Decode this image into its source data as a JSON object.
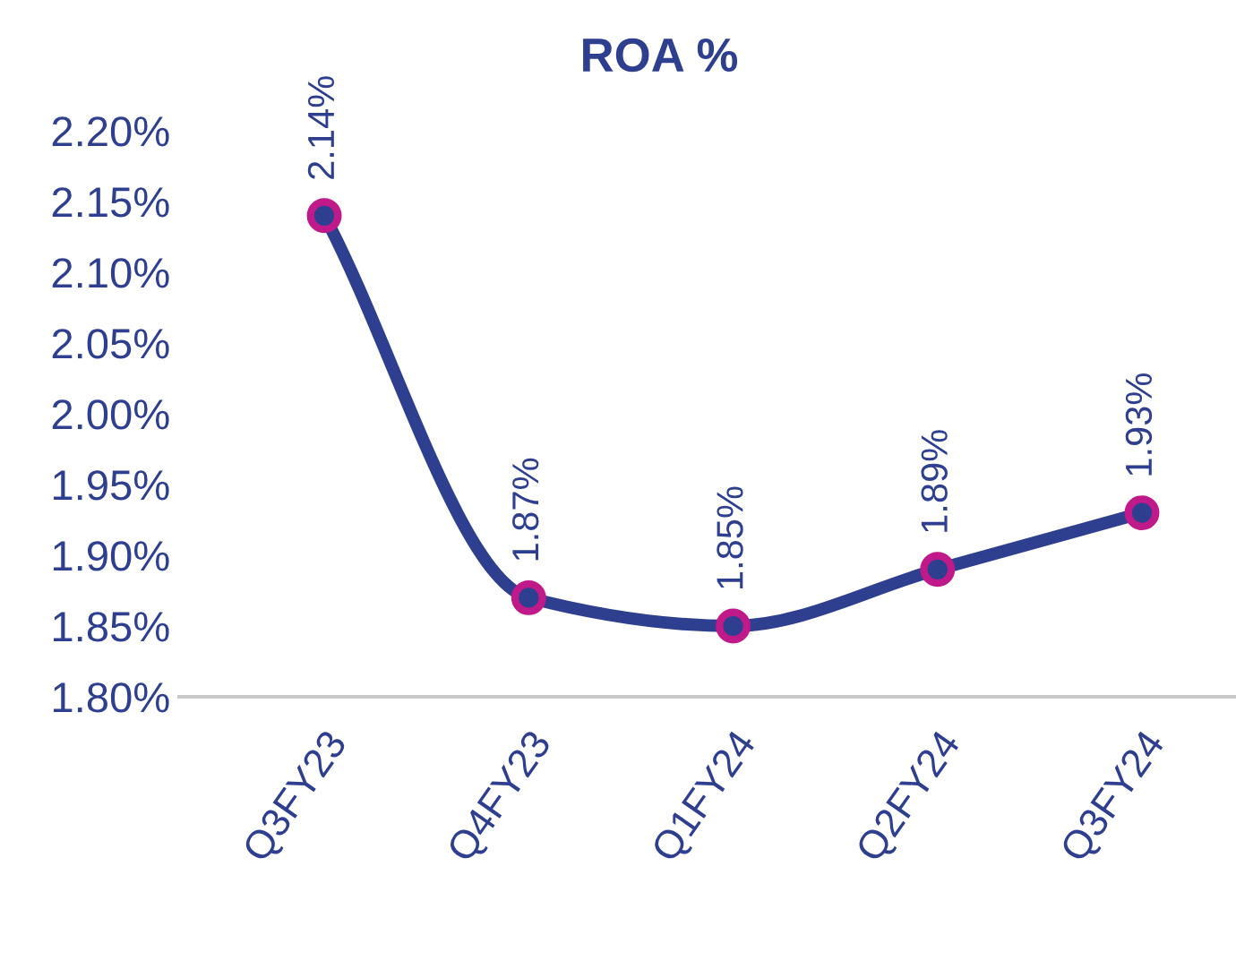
{
  "chart_data": {
    "type": "line",
    "title": "ROA %",
    "categories": [
      "Q3FY23",
      "Q4FY23",
      "Q1FY24",
      "Q2FY24",
      "Q3FY24"
    ],
    "series": [
      {
        "color": "#2e3f8f",
        "values": [
          2.14,
          1.87,
          1.85,
          1.89,
          1.93
        ],
        "value_labels": [
          "2.14%",
          "1.87%",
          "1.85%",
          "1.89%",
          "1.93%"
        ]
      }
    ],
    "ylim": [
      1.8,
      2.2
    ],
    "yticks": [
      {
        "value": 1.8,
        "label": "1.80%"
      },
      {
        "value": 1.85,
        "label": "1.85%"
      },
      {
        "value": 1.9,
        "label": "1.90%"
      },
      {
        "value": 1.95,
        "label": "1.95%"
      },
      {
        "value": 2.0,
        "label": "2.00%"
      },
      {
        "value": 2.05,
        "label": "2.05%"
      },
      {
        "value": 2.1,
        "label": "2.10%"
      },
      {
        "value": 2.15,
        "label": "2.15%"
      },
      {
        "value": 2.2,
        "label": "2.20%"
      }
    ],
    "marker": "circle",
    "grid": false,
    "legend": false
  }
}
